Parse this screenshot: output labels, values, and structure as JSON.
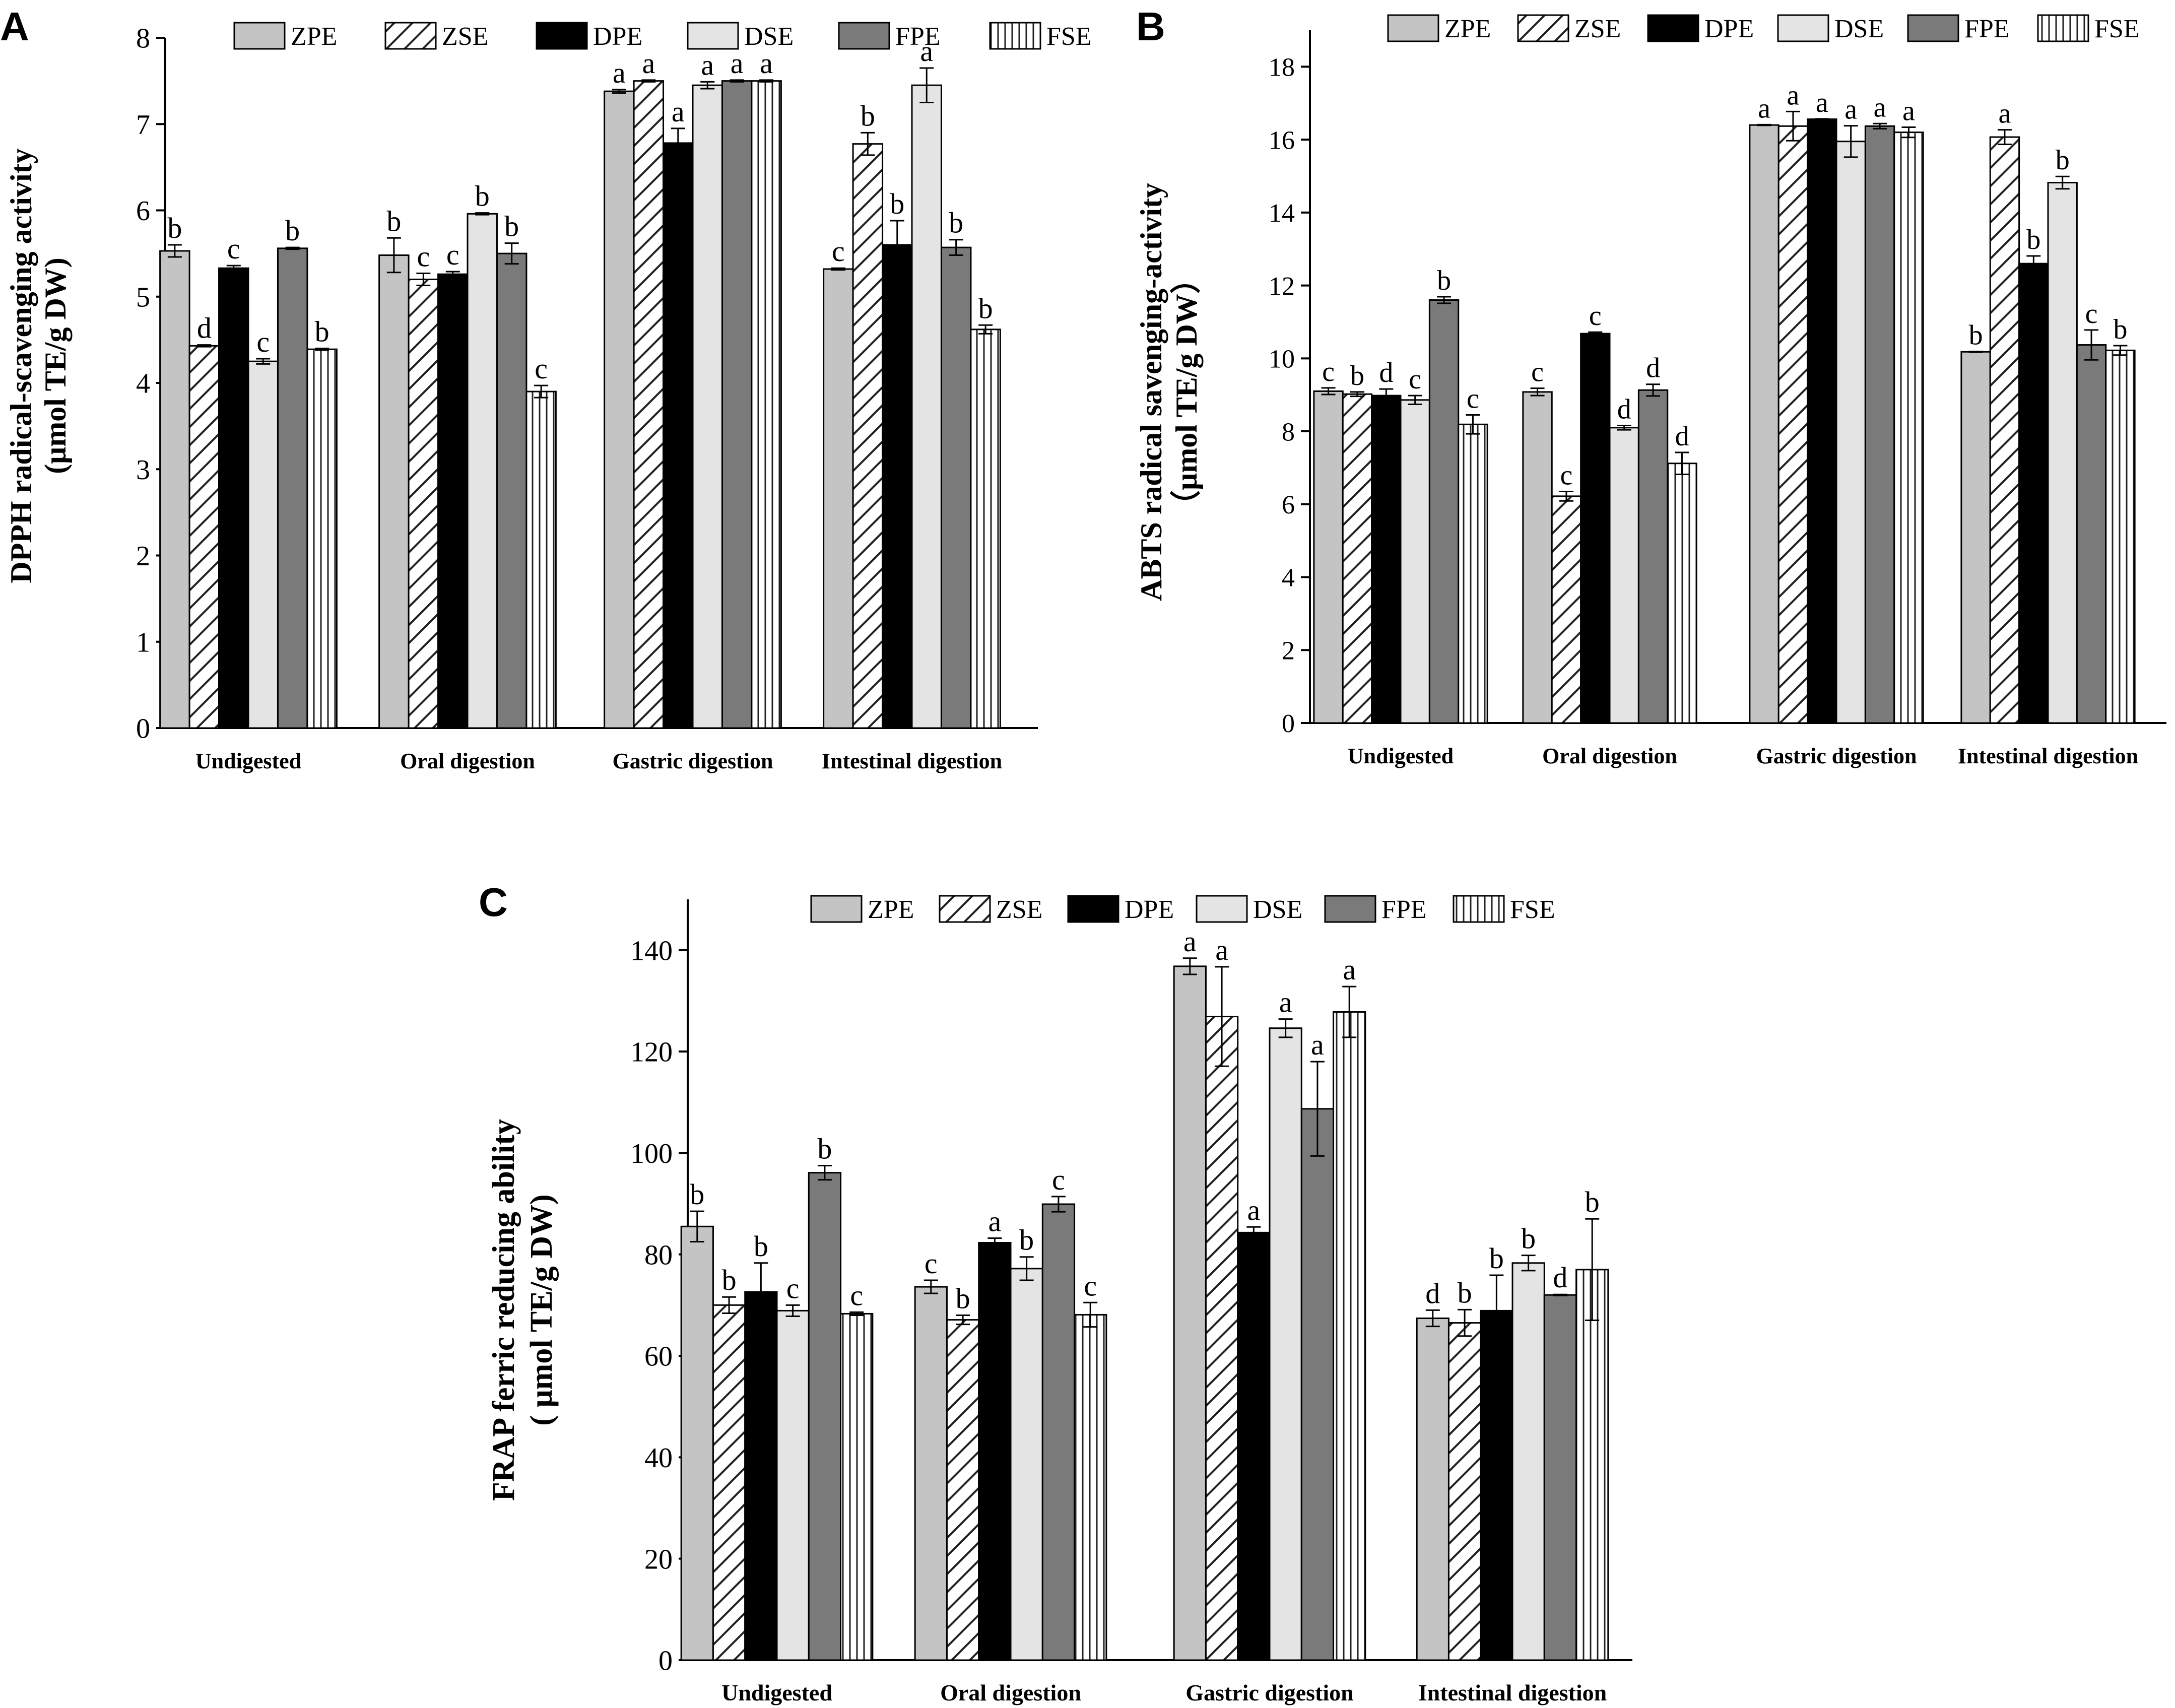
{
  "figure": {
    "type": "grouped bar chart figure with three panels"
  },
  "series_style": {
    "ZPE": {
      "fill": "#c4c4c4",
      "pattern": "solid"
    },
    "ZSE": {
      "fill": "#ffffff",
      "pattern": "diagonal"
    },
    "DPE": {
      "fill": "#000000",
      "pattern": "solid"
    },
    "DSE": {
      "fill": "#e4e4e4",
      "pattern": "solid"
    },
    "FPE": {
      "fill": "#7a7a7a",
      "pattern": "solid"
    },
    "FSE": {
      "fill": "#ffffff",
      "pattern": "vertical"
    }
  },
  "chart_data": [
    {
      "panel": "A",
      "type": "bar",
      "ylabel_line1": "DPPH radical-scavenging activity",
      "ylabel_line2": "(μmol TE/g DW)",
      "xlabel": "",
      "ylim": [
        0,
        8
      ],
      "yticks": [
        0,
        1,
        2,
        3,
        4,
        5,
        6,
        7,
        8
      ],
      "categories": [
        "Undigested",
        "Oral digestion",
        "Gastric digestion",
        "Intestinal digestion"
      ],
      "series": [
        {
          "name": "ZPE",
          "values": [
            5.53,
            5.48,
            7.38,
            5.32
          ],
          "errors": [
            0.07,
            0.2,
            0.02,
            0.01
          ],
          "letters": [
            "b",
            "b",
            "a",
            "c"
          ]
        },
        {
          "name": "ZSE",
          "values": [
            4.43,
            5.2,
            7.5,
            6.77
          ],
          "errors": [
            0.01,
            0.07,
            0.01,
            0.13
          ],
          "letters": [
            "d",
            "c",
            "a",
            "b"
          ]
        },
        {
          "name": "DPE",
          "values": [
            5.33,
            5.26,
            6.78,
            5.6
          ],
          "errors": [
            0.03,
            0.03,
            0.17,
            0.28
          ],
          "letters": [
            "c",
            "c",
            "a",
            "b"
          ]
        },
        {
          "name": "DSE",
          "values": [
            4.25,
            5.96,
            7.45,
            7.45
          ],
          "errors": [
            0.03,
            0.01,
            0.04,
            0.2
          ],
          "letters": [
            "c",
            "b",
            "a",
            "a"
          ]
        },
        {
          "name": "FPE",
          "values": [
            5.56,
            5.5,
            7.5,
            5.57
          ],
          "errors": [
            0.01,
            0.12,
            0.01,
            0.09
          ],
          "letters": [
            "b",
            "b",
            "a",
            "b"
          ]
        },
        {
          "name": "FSE",
          "values": [
            4.39,
            3.9,
            7.5,
            4.62
          ],
          "errors": [
            0.01,
            0.07,
            0.01,
            0.05
          ],
          "letters": [
            "b",
            "c",
            "a",
            "b"
          ]
        }
      ]
    },
    {
      "panel": "B",
      "type": "bar",
      "ylabel_line1": "ABTS radical savenging-activity",
      "ylabel_line2": "（μmol TE/g DW）",
      "xlabel": "",
      "ylim": [
        0,
        19
      ],
      "yticks": [
        0,
        2,
        4,
        6,
        8,
        10,
        12,
        14,
        16,
        18
      ],
      "categories": [
        "Undigested",
        "Oral digestion",
        "Gastric digestion",
        "Intestinal digestion"
      ],
      "series": [
        {
          "name": "ZPE",
          "values": [
            9.1,
            9.08,
            16.4,
            10.18
          ],
          "errors": [
            0.09,
            0.1,
            0.01,
            0.01
          ],
          "letters": [
            "c",
            "c",
            "a",
            "b"
          ]
        },
        {
          "name": "ZSE",
          "values": [
            9.02,
            6.22,
            16.37,
            16.07
          ],
          "errors": [
            0.06,
            0.13,
            0.4,
            0.2
          ],
          "letters": [
            "b",
            "c",
            "a",
            "a"
          ]
        },
        {
          "name": "DPE",
          "values": [
            8.98,
            10.68,
            16.56,
            12.6
          ],
          "errors": [
            0.18,
            0.04,
            0.01,
            0.21
          ],
          "letters": [
            "d",
            "c",
            "a",
            "b"
          ]
        },
        {
          "name": "DSE",
          "values": [
            8.86,
            8.1,
            15.95,
            14.82
          ],
          "errors": [
            0.12,
            0.06,
            0.43,
            0.17
          ],
          "letters": [
            "c",
            "d",
            "a",
            "b"
          ]
        },
        {
          "name": "FPE",
          "values": [
            11.6,
            9.13,
            16.37,
            10.37
          ],
          "errors": [
            0.09,
            0.16,
            0.07,
            0.41
          ],
          "letters": [
            "b",
            "d",
            "a",
            "c"
          ]
        },
        {
          "name": "FSE",
          "values": [
            8.19,
            7.12,
            16.2,
            10.22
          ],
          "errors": [
            0.26,
            0.3,
            0.14,
            0.13
          ],
          "letters": [
            "c",
            "d",
            "a",
            "b"
          ]
        }
      ]
    },
    {
      "panel": "C",
      "type": "bar",
      "ylabel_line1": "FRAP ferric reducing ability",
      "ylabel_line2": "( μmol TE/g DW)",
      "xlabel": "",
      "ylim": [
        0,
        150
      ],
      "yticks": [
        0,
        20,
        40,
        60,
        80,
        100,
        120,
        140
      ],
      "categories": [
        "Undigested",
        "Oral digestion",
        "Gastric digestion",
        "Intestinal digestion"
      ],
      "series": [
        {
          "name": "ZPE",
          "values": [
            85.5,
            73.6,
            136.8,
            67.4
          ],
          "errors": [
            3.0,
            1.3,
            1.6,
            1.6
          ],
          "letters": [
            "b",
            "c",
            "a",
            "d"
          ]
        },
        {
          "name": "ZSE",
          "values": [
            70.0,
            67.1,
            126.9,
            66.5
          ],
          "errors": [
            1.6,
            0.9,
            9.8,
            2.6
          ],
          "letters": [
            "b",
            "b",
            "a",
            "b"
          ]
        },
        {
          "name": "DPE",
          "values": [
            72.6,
            82.3,
            84.3,
            68.9
          ],
          "errors": [
            5.7,
            0.9,
            1.1,
            7.0
          ],
          "letters": [
            "b",
            "a",
            "a",
            "b"
          ]
        },
        {
          "name": "DSE",
          "values": [
            68.9,
            77.2,
            124.6,
            78.3
          ],
          "errors": [
            1.1,
            2.3,
            1.8,
            1.5
          ],
          "letters": [
            "c",
            "b",
            "a",
            "b"
          ]
        },
        {
          "name": "FPE",
          "values": [
            96.1,
            89.9,
            108.7,
            72.0
          ],
          "errors": [
            1.4,
            1.5,
            9.3,
            0.1
          ],
          "letters": [
            "b",
            "c",
            "a",
            "d"
          ]
        },
        {
          "name": "FSE",
          "values": [
            68.3,
            68.1,
            127.8,
            77.0
          ],
          "errors": [
            0.3,
            2.4,
            5.0,
            10.0
          ],
          "letters": [
            "c",
            "c",
            "a",
            "b"
          ]
        }
      ]
    }
  ]
}
